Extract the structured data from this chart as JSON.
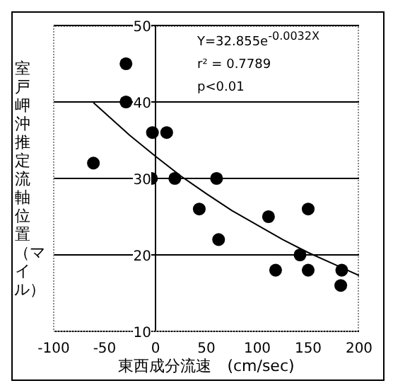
{
  "chart_data": {
    "type": "scatter",
    "xlabel": "東西成分流速　(cm/sec)",
    "ylabel": "室戸岬沖推定流軸位置（マイル）",
    "annotations": [
      "Y=32.855e$^{-0.0032X}$",
      "r² = 0.7789",
      "p<0.01"
    ],
    "xlim": [
      -100,
      200
    ],
    "xticks": [
      -100,
      -50,
      0,
      50,
      100,
      150,
      200
    ],
    "ylim": [
      10,
      50
    ],
    "yticks": [
      10,
      20,
      30,
      40,
      50
    ],
    "grid": "y",
    "marker": "circle",
    "series": [
      {
        "color": "#000000",
        "x": [
          -29,
          -29,
          -61,
          -3,
          11,
          -4,
          19,
          60,
          43,
          62,
          111,
          150,
          142,
          118,
          150,
          183,
          182
        ],
        "values": [
          45,
          40,
          32,
          36,
          36,
          30,
          30,
          30,
          26,
          22,
          25,
          26,
          20,
          18,
          18,
          18,
          16
        ]
      },
      {
        "type": "line",
        "color": "#000000",
        "marker": "none",
        "x": [
          -61,
          -25,
          0,
          25,
          50,
          75,
          100,
          125,
          150,
          175,
          200
        ],
        "values": [
          39.9,
          35.6,
          32.9,
          30.3,
          28.0,
          25.8,
          23.9,
          22.0,
          20.3,
          18.8,
          17.3
        ]
      }
    ]
  }
}
